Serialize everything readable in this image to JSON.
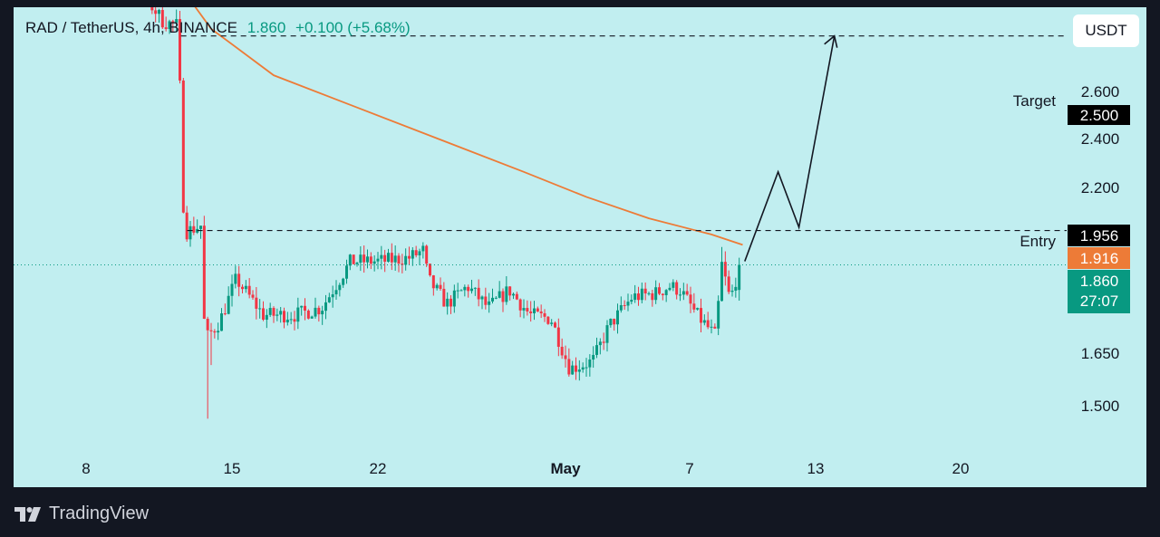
{
  "header": {
    "symbol": "RAD / TetherUS, 4h, BINANCE",
    "last": "1.860",
    "change": "+0.100 (+5.68%)"
  },
  "currency": "USDT",
  "brand": "TradingView",
  "colors": {
    "background": "#c1eef0",
    "up": "#089981",
    "down": "#f23645",
    "ma": "#ed7b37",
    "frame": "#131722"
  },
  "chart_data": {
    "type": "candlestick",
    "symbol": "RAD / TetherUS",
    "interval": "4h",
    "exchange": "BINANCE",
    "y_ticks": [
      "2.600",
      "2.400",
      "2.200",
      "1.650",
      "1.500"
    ],
    "x_ticks": [
      {
        "label": "8",
        "bold": false
      },
      {
        "label": "15",
        "bold": false
      },
      {
        "label": "22",
        "bold": false
      },
      {
        "label": "May",
        "bold": true
      },
      {
        "label": "7",
        "bold": false
      },
      {
        "label": "13",
        "bold": false
      },
      {
        "label": "20",
        "bold": false
      }
    ],
    "price_labels": [
      {
        "value": "2.500",
        "style": "black"
      },
      {
        "value": "1.956",
        "style": "black"
      },
      {
        "value": "1.916",
        "style": "orange"
      },
      {
        "value": "1.860",
        "sub": "27:07",
        "style": "green"
      }
    ],
    "annotations": {
      "target": "Target",
      "entry": "Entry"
    },
    "levels": {
      "target": 2.5,
      "entry": 1.956,
      "last": 1.86
    },
    "moving_average": [
      {
        "day": 8,
        "value": 2.7
      },
      {
        "day": 10,
        "value": 2.71
      },
      {
        "day": 12,
        "value": 2.68
      },
      {
        "day": 14,
        "value": 2.52
      },
      {
        "day": 17,
        "value": 2.39
      },
      {
        "day": 21,
        "value": 2.3
      },
      {
        "day": 25,
        "value": 2.21
      },
      {
        "day": 29,
        "value": 2.12
      },
      {
        "day": 32,
        "value": 2.05
      },
      {
        "day": 35,
        "value": 1.99
      },
      {
        "day": 38,
        "value": 1.945
      },
      {
        "day": 39.5,
        "value": 1.916
      }
    ],
    "projection": [
      {
        "day": 39.6,
        "value": 1.87
      },
      {
        "day": 41.2,
        "value": 2.12
      },
      {
        "day": 42.2,
        "value": 1.965
      },
      {
        "day": 43.9,
        "value": 2.5
      }
    ],
    "price_path": [
      {
        "day": 7,
        "value": 2.66
      },
      {
        "day": 8,
        "value": 2.68
      },
      {
        "day": 8.8,
        "value": 2.82
      },
      {
        "day": 9.8,
        "value": 2.78
      },
      {
        "day": 10.7,
        "value": 2.62
      },
      {
        "day": 11.7,
        "value": 2.54
      },
      {
        "day": 12.35,
        "value": 2.53
      },
      {
        "day": 12.55,
        "value": 2.3
      },
      {
        "day": 12.7,
        "value": 1.95
      },
      {
        "day": 13.5,
        "value": 1.97
      },
      {
        "day": 13.7,
        "value": 1.65
      },
      {
        "day": 14.4,
        "value": 1.7
      },
      {
        "day": 15.2,
        "value": 1.82
      },
      {
        "day": 16.5,
        "value": 1.72
      },
      {
        "day": 18,
        "value": 1.72
      },
      {
        "day": 19.3,
        "value": 1.74
      },
      {
        "day": 20.7,
        "value": 1.87
      },
      {
        "day": 22.1,
        "value": 1.87
      },
      {
        "day": 23.5,
        "value": 1.88
      },
      {
        "day": 24.2,
        "value": 1.9
      },
      {
        "day": 24.4,
        "value": 1.82
      },
      {
        "day": 25.3,
        "value": 1.75
      },
      {
        "day": 26.3,
        "value": 1.8
      },
      {
        "day": 27.3,
        "value": 1.74
      },
      {
        "day": 28.3,
        "value": 1.79
      },
      {
        "day": 29.3,
        "value": 1.72
      },
      {
        "day": 30.3,
        "value": 1.71
      },
      {
        "day": 31.2,
        "value": 1.57
      },
      {
        "day": 32.3,
        "value": 1.59
      },
      {
        "day": 33.1,
        "value": 1.69
      },
      {
        "day": 34.2,
        "value": 1.77
      },
      {
        "day": 35.3,
        "value": 1.78
      },
      {
        "day": 36,
        "value": 1.8
      },
      {
        "day": 36.5,
        "value": 1.79
      },
      {
        "day": 37.3,
        "value": 1.72
      },
      {
        "day": 38.2,
        "value": 1.66
      },
      {
        "day": 38.5,
        "value": 1.86
      },
      {
        "day": 38.9,
        "value": 1.76
      },
      {
        "day": 39.35,
        "value": 1.86
      }
    ]
  }
}
